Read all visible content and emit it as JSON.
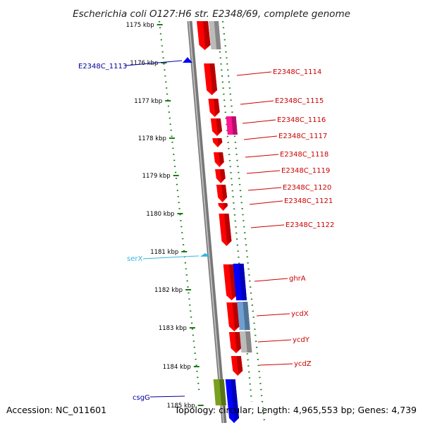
{
  "title": "Escherichia coli O127:H6 str. E2348/69, complete genome",
  "footer": {
    "accession": "Accession: NC_011601",
    "topology": "Topology: circular; Length: 4,965,553 bp; Genes: 4,739"
  },
  "colors": {
    "red_gene": "#ff0000",
    "blue_gene": "#0000ff",
    "grey_gene": "#bbbbbb",
    "magenta_gene": "#ff1493",
    "olive_gene": "#7aa020",
    "trna": "#33b5e5",
    "dots": "#1a7a1a",
    "axis": "#888888",
    "label_red": "#cc0000",
    "label_blue": "#000099"
  },
  "ticks": [
    "1175 kbp",
    "1176 kbp",
    "1177 kbp",
    "1178 kbp",
    "1179 kbp",
    "1180 kbp",
    "1181 kbp",
    "1182 kbp",
    "1183 kbp",
    "1184 kbp",
    "1185 kbp"
  ],
  "labels": [
    {
      "text": "E2348C_1113",
      "side": "left",
      "color": "blue"
    },
    {
      "text": "E2348C_1114",
      "side": "right",
      "color": "red"
    },
    {
      "text": "E2348C_1115",
      "side": "right",
      "color": "red"
    },
    {
      "text": "E2348C_1116",
      "side": "right",
      "color": "red"
    },
    {
      "text": "E2348C_1117",
      "side": "right",
      "color": "red"
    },
    {
      "text": "E2348C_1118",
      "side": "right",
      "color": "red"
    },
    {
      "text": "E2348C_1119",
      "side": "right",
      "color": "red"
    },
    {
      "text": "E2348C_1120",
      "side": "right",
      "color": "red"
    },
    {
      "text": "E2348C_1121",
      "side": "right",
      "color": "red"
    },
    {
      "text": "E2348C_1122",
      "side": "right",
      "color": "red"
    },
    {
      "text": "serX",
      "side": "left",
      "color": "trna"
    },
    {
      "text": "ghrA",
      "side": "right",
      "color": "red"
    },
    {
      "text": "ycdX",
      "side": "right",
      "color": "red"
    },
    {
      "text": "ycdY",
      "side": "right",
      "color": "red"
    },
    {
      "text": "ycdZ",
      "side": "right",
      "color": "red"
    },
    {
      "text": "csgG",
      "side": "left",
      "color": "blue"
    }
  ]
}
